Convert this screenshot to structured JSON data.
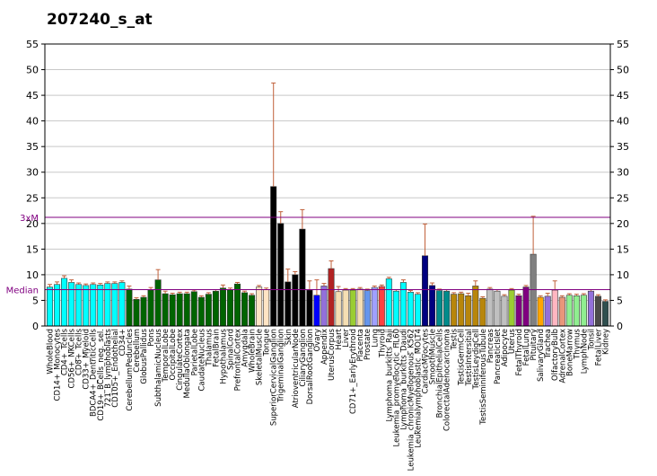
{
  "chart_data": {
    "type": "bar",
    "title": "207240_s_at",
    "xlabel": "",
    "ylabel": "",
    "ylim": [
      0,
      55
    ],
    "yticks": [
      0,
      5,
      10,
      15,
      20,
      25,
      30,
      35,
      40,
      45,
      50,
      55
    ],
    "grid": true,
    "reference_lines": [
      {
        "label": "3xM",
        "value": 21.2,
        "color": "#800080"
      },
      {
        "label": "Median",
        "value": 7.1,
        "color": "#800080"
      }
    ],
    "categories": [
      "WholeBlood",
      "CD14+_Monocytes",
      "CD4+_Tcells",
      "CD56+_NKCells",
      "CD8+_Tcells",
      "CD33+_Myeloid",
      "BDCA4+_DentriticCells",
      "CD19+_BCells_neg._sel.",
      "721_B_lymphoblasts",
      "CD105+_Endothelial",
      "CD34+",
      "CerebellumPeduncles",
      "Cerebellum",
      "GlobusPallidus",
      "Pons",
      "SubthalamicNucleus",
      "TemporalLobe",
      "OccipitalLobe",
      "CingulateCortex",
      "MedullaOblongata",
      "ParietalLobe",
      "CaudateNucleus",
      "Thalamus",
      "FetalBrain",
      "Hypothalamus",
      "SpinalCord",
      "PrefrontalCortex",
      "Amygdala",
      "WholeBrain",
      "SkeletalMuscle",
      "Tongue",
      "SuperiorCervicalGanglion",
      "TrigeminalGanglion",
      "Skin",
      "AtrioventricularNode",
      "CiliaryGanglion",
      "DorsalRootGanglion",
      "Ovary",
      "Appendix",
      "UterusCorpus",
      "Heart",
      "Liver",
      "CD71+_EarlyErythroid",
      "Placenta",
      "Prostate",
      "Lung",
      "Thyroid",
      "Lymphoma_burkitts_Raji",
      "Leukemia_promyelocytic_HL60",
      "Lymphoma_burkitts_Daudi",
      "Leukemia_chronicMyelogenous_K562",
      "Leukemialymphoblastic_MOLT4",
      "CardiacMyocytes",
      "SmoothMuscle",
      "BronchialEpithelialCells",
      "ColorectalAdenocarcinoma",
      "Testis",
      "TestisGermCell",
      "TestisIntersitial",
      "TestisLeydigCell",
      "TestisSeminiferousTubule",
      "Pancreas",
      "PancreaticIslet",
      "Adipocyte",
      "Uterus",
      "FetalThyroid",
      "FetalLung",
      "Pituitary",
      "SalivaryGland",
      "Trachea",
      "OlfactoryBulb",
      "AdrenalCortex",
      "BoneMarrow",
      "Thymus",
      "LymphNode",
      "Tonsil",
      "FetalLiver",
      "Kidney"
    ],
    "values": [
      7.6,
      8.1,
      9.3,
      8.5,
      8.1,
      7.9,
      8.1,
      8.0,
      8.3,
      8.3,
      8.5,
      7.2,
      5.2,
      5.6,
      7.0,
      9.0,
      6.3,
      6.1,
      6.3,
      6.3,
      6.7,
      5.6,
      6.2,
      6.8,
      7.4,
      7.1,
      8.2,
      6.5,
      6.0,
      7.6,
      7.1,
      27.2,
      20.0,
      8.6,
      10.0,
      18.9,
      7.0,
      6.0,
      7.8,
      11.2,
      6.7,
      7.0,
      7.0,
      7.2,
      6.9,
      7.5,
      7.7,
      9.2,
      6.8,
      8.5,
      6.6,
      6.2,
      13.7,
      7.9,
      6.9,
      6.8,
      6.2,
      6.3,
      5.9,
      7.8,
      5.4,
      7.2,
      6.8,
      5.8,
      7.0,
      5.9,
      7.6,
      14.0,
      5.6,
      5.8,
      7.0,
      5.6,
      6.0,
      5.9,
      6.0,
      6.8,
      5.8,
      4.8
    ],
    "errors": [
      0.5,
      0.5,
      0.5,
      0.5,
      0.3,
      0.3,
      0.3,
      0.3,
      0.3,
      0.3,
      0.3,
      0.6,
      0.3,
      0.3,
      0.5,
      2.0,
      0.5,
      0.3,
      0.3,
      0.3,
      0.3,
      0.3,
      0.3,
      0.3,
      0.6,
      0.3,
      0.3,
      0.3,
      0.3,
      0.3,
      0.3,
      20.2,
      2.3,
      2.5,
      0.6,
      3.8,
      1.8,
      3.0,
      0.5,
      1.5,
      1.0,
      0.3,
      0.3,
      0.3,
      0.3,
      0.3,
      0.3,
      0.3,
      0.3,
      0.5,
      0.3,
      0.3,
      6.2,
      0.5,
      0.3,
      0.3,
      0.3,
      0.3,
      0.5,
      1.0,
      0.3,
      0.3,
      0.3,
      0.3,
      0.3,
      0.3,
      0.3,
      7.4,
      0.3,
      0.6,
      1.8,
      0.3,
      0.3,
      0.3,
      0.3,
      0.3,
      0.3,
      0.3
    ],
    "colors": [
      "#00ffff",
      "#00ffff",
      "#00ffff",
      "#00ffff",
      "#00ffff",
      "#00ffff",
      "#00ffff",
      "#00ffff",
      "#00ffff",
      "#00ffff",
      "#00ffff",
      "#006400",
      "#006400",
      "#006400",
      "#006400",
      "#006400",
      "#006400",
      "#006400",
      "#006400",
      "#006400",
      "#006400",
      "#006400",
      "#006400",
      "#006400",
      "#006400",
      "#006400",
      "#006400",
      "#006400",
      "#006400",
      "#ffe4c4",
      "#ffe4c4",
      "#000000",
      "#000000",
      "#000000",
      "#000000",
      "#000000",
      "#000000",
      "#0000ff",
      "#9370db",
      "#b22222",
      "#f5deb3",
      "#f5deb3",
      "#9acd32",
      "#f5deb3",
      "#6495ed",
      "#a0a0ff",
      "#ff4040",
      "#00ffff",
      "#00ffff",
      "#00ffff",
      "#00ffff",
      "#00ffff",
      "#000080",
      "#000080",
      "#008b8b",
      "#008b8b",
      "#b8860b",
      "#b8860b",
      "#b8860b",
      "#b8860b",
      "#b8860b",
      "#c0c0c0",
      "#c0c0c0",
      "#c0c0c0",
      "#9acd32",
      "#800080",
      "#800080",
      "#808080",
      "#ffa500",
      "#9370db",
      "#ffb6c1",
      "#e9967a",
      "#90ee90",
      "#90ee90",
      "#90ee90",
      "#9370db",
      "#4b4b4b",
      "#2f4f4f"
    ]
  }
}
